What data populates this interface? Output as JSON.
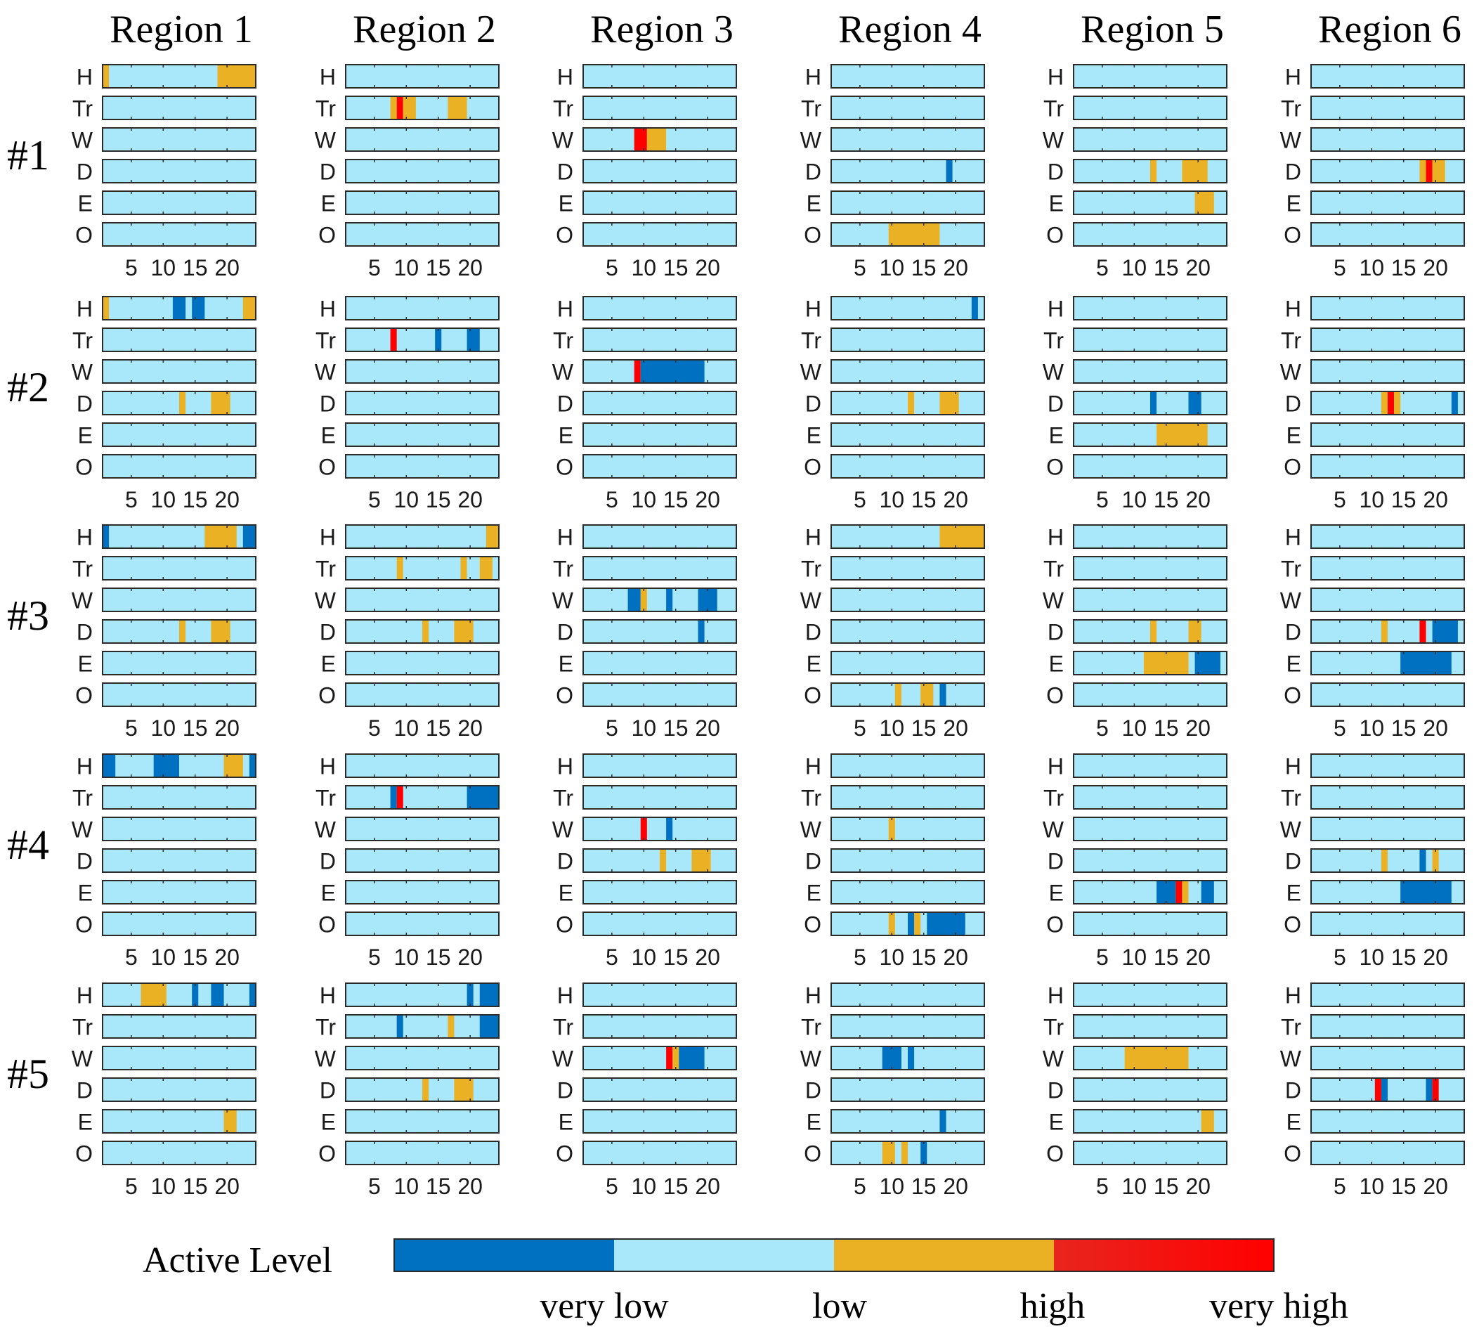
{
  "chart_data": {
    "type": "heatmap",
    "regions": [
      "Region 1",
      "Region 2",
      "Region 3",
      "Region 4",
      "Region 5",
      "Region 6"
    ],
    "groups": [
      "#1",
      "#2",
      "#3",
      "#4",
      "#5"
    ],
    "rows": [
      "H",
      "Tr",
      "W",
      "D",
      "E",
      "O"
    ],
    "x_range": [
      1,
      24
    ],
    "x_ticks": [
      5,
      10,
      15,
      20
    ],
    "x_tick_labels": [
      "5",
      "10",
      "15",
      "20"
    ],
    "default_level": 1,
    "levels": [
      {
        "name": "very low",
        "color": "#0070C0"
      },
      {
        "name": "low",
        "color": "#A8E8FA"
      },
      {
        "name": "high",
        "color": "#EAB125"
      },
      {
        "name": "very high",
        "color": "#FF0000"
      }
    ],
    "legend": {
      "title": "Active Level",
      "labels": [
        "very low",
        "low",
        "high",
        "very high"
      ],
      "colors": [
        "#0070C0",
        "#A8E8FA",
        "#EAB125",
        "#FF0000"
      ]
    },
    "segments": [
      [
        {
          "H": [
            [
              1,
              1,
              2
            ],
            [
              19,
              24,
              2
            ]
          ],
          "Tr": [],
          "W": [],
          "D": [],
          "E": [],
          "O": []
        },
        {
          "H": [],
          "Tr": [
            [
              8,
              8,
              2
            ],
            [
              9,
              9,
              3
            ],
            [
              10,
              11,
              2
            ],
            [
              17,
              19,
              2
            ]
          ],
          "W": [],
          "D": [],
          "E": [],
          "O": []
        },
        {
          "H": [],
          "Tr": [],
          "W": [
            [
              9,
              10,
              3
            ],
            [
              11,
              13,
              2
            ]
          ],
          "D": [],
          "E": [],
          "O": []
        },
        {
          "H": [],
          "Tr": [],
          "W": [],
          "D": [
            [
              19,
              19,
              0
            ]
          ],
          "E": [],
          "O": [
            [
              10,
              17,
              2
            ]
          ]
        },
        {
          "H": [],
          "Tr": [],
          "W": [],
          "D": [
            [
              13,
              13,
              2
            ],
            [
              18,
              21,
              2
            ]
          ],
          "E": [
            [
              20,
              22,
              2
            ]
          ],
          "O": []
        },
        {
          "H": [],
          "Tr": [],
          "W": [],
          "D": [
            [
              18,
              18,
              2
            ],
            [
              19,
              19,
              3
            ],
            [
              20,
              21,
              2
            ]
          ],
          "E": [],
          "O": []
        }
      ],
      [
        {
          "H": [
            [
              1,
              1,
              2
            ],
            [
              12,
              13,
              0
            ],
            [
              15,
              16,
              0
            ],
            [
              23,
              24,
              2
            ]
          ],
          "Tr": [],
          "W": [],
          "D": [
            [
              13,
              13,
              2
            ],
            [
              18,
              20,
              2
            ]
          ],
          "E": [],
          "O": []
        },
        {
          "H": [],
          "Tr": [
            [
              8,
              8,
              3
            ],
            [
              15,
              15,
              0
            ],
            [
              20,
              21,
              0
            ]
          ],
          "W": [],
          "D": [],
          "E": [],
          "O": []
        },
        {
          "H": [],
          "Tr": [],
          "W": [
            [
              9,
              9,
              3
            ],
            [
              10,
              19,
              0
            ]
          ],
          "D": [],
          "E": [],
          "O": []
        },
        {
          "H": [
            [
              23,
              23,
              0
            ]
          ],
          "Tr": [],
          "W": [],
          "D": [
            [
              13,
              13,
              2
            ],
            [
              18,
              20,
              2
            ]
          ],
          "E": [],
          "O": []
        },
        {
          "H": [],
          "Tr": [],
          "W": [],
          "D": [
            [
              13,
              13,
              0
            ],
            [
              19,
              20,
              0
            ]
          ],
          "E": [
            [
              14,
              21,
              2
            ]
          ],
          "O": []
        },
        {
          "H": [],
          "Tr": [],
          "W": [],
          "D": [
            [
              12,
              12,
              2
            ],
            [
              13,
              13,
              3
            ],
            [
              14,
              14,
              2
            ],
            [
              23,
              23,
              0
            ]
          ],
          "E": [],
          "O": []
        }
      ],
      [
        {
          "H": [
            [
              1,
              1,
              0
            ],
            [
              17,
              21,
              2
            ],
            [
              23,
              24,
              0
            ]
          ],
          "Tr": [],
          "W": [],
          "D": [
            [
              13,
              13,
              2
            ],
            [
              18,
              20,
              2
            ]
          ],
          "E": [],
          "O": []
        },
        {
          "H": [
            [
              23,
              24,
              2
            ]
          ],
          "Tr": [
            [
              9,
              9,
              2
            ],
            [
              19,
              19,
              2
            ],
            [
              22,
              23,
              2
            ]
          ],
          "W": [],
          "D": [
            [
              13,
              13,
              2
            ],
            [
              18,
              20,
              2
            ]
          ],
          "E": [],
          "O": []
        },
        {
          "H": [],
          "Tr": [],
          "W": [
            [
              8,
              9,
              0
            ],
            [
              10,
              10,
              2
            ],
            [
              14,
              14,
              0
            ],
            [
              19,
              21,
              0
            ]
          ],
          "D": [
            [
              19,
              19,
              0
            ]
          ],
          "E": [],
          "O": []
        },
        {
          "H": [
            [
              18,
              24,
              2
            ]
          ],
          "Tr": [],
          "W": [],
          "D": [],
          "E": [],
          "O": [
            [
              11,
              11,
              2
            ],
            [
              15,
              16,
              2
            ],
            [
              18,
              18,
              0
            ]
          ]
        },
        {
          "H": [],
          "Tr": [],
          "W": [],
          "D": [
            [
              13,
              13,
              2
            ],
            [
              19,
              20,
              2
            ]
          ],
          "E": [
            [
              12,
              18,
              2
            ],
            [
              20,
              23,
              0
            ]
          ],
          "O": []
        },
        {
          "H": [],
          "Tr": [],
          "W": [],
          "D": [
            [
              12,
              12,
              2
            ],
            [
              18,
              18,
              3
            ],
            [
              20,
              23,
              0
            ]
          ],
          "E": [
            [
              15,
              22,
              0
            ]
          ],
          "O": []
        }
      ],
      [
        {
          "H": [
            [
              1,
              2,
              0
            ],
            [
              9,
              12,
              0
            ],
            [
              20,
              22,
              2
            ],
            [
              24,
              24,
              0
            ]
          ],
          "Tr": [],
          "W": [],
          "D": [],
          "E": [],
          "O": []
        },
        {
          "H": [],
          "Tr": [
            [
              8,
              8,
              0
            ],
            [
              9,
              9,
              3
            ],
            [
              20,
              24,
              0
            ]
          ],
          "W": [],
          "D": [],
          "E": [],
          "O": []
        },
        {
          "H": [],
          "Tr": [],
          "W": [
            [
              10,
              10,
              3
            ],
            [
              14,
              14,
              0
            ]
          ],
          "D": [
            [
              13,
              13,
              2
            ],
            [
              18,
              20,
              2
            ]
          ],
          "E": [],
          "O": []
        },
        {
          "H": [],
          "Tr": [],
          "W": [
            [
              10,
              10,
              2
            ]
          ],
          "D": [],
          "E": [],
          "O": [
            [
              10,
              10,
              2
            ],
            [
              13,
              13,
              0
            ],
            [
              14,
              14,
              2
            ],
            [
              16,
              21,
              0
            ]
          ]
        },
        {
          "H": [],
          "Tr": [],
          "W": [],
          "D": [],
          "E": [
            [
              14,
              16,
              0
            ],
            [
              17,
              17,
              3
            ],
            [
              18,
              18,
              2
            ],
            [
              21,
              22,
              0
            ]
          ],
          "O": []
        },
        {
          "H": [],
          "Tr": [],
          "W": [],
          "D": [
            [
              12,
              12,
              2
            ],
            [
              18,
              18,
              0
            ],
            [
              20,
              20,
              2
            ]
          ],
          "E": [
            [
              15,
              22,
              0
            ]
          ],
          "O": []
        }
      ],
      [
        {
          "H": [
            [
              7,
              10,
              2
            ],
            [
              15,
              15,
              0
            ],
            [
              18,
              19,
              0
            ],
            [
              24,
              24,
              0
            ]
          ],
          "Tr": [],
          "W": [],
          "D": [],
          "E": [
            [
              20,
              21,
              2
            ]
          ],
          "O": []
        },
        {
          "H": [
            [
              20,
              20,
              0
            ],
            [
              22,
              24,
              0
            ]
          ],
          "Tr": [
            [
              9,
              9,
              0
            ],
            [
              17,
              17,
              2
            ],
            [
              22,
              24,
              0
            ]
          ],
          "W": [],
          "D": [
            [
              13,
              13,
              2
            ],
            [
              18,
              20,
              2
            ]
          ],
          "E": [],
          "O": []
        },
        {
          "H": [],
          "Tr": [],
          "W": [
            [
              14,
              14,
              3
            ],
            [
              15,
              15,
              2
            ],
            [
              16,
              19,
              0
            ]
          ],
          "D": [],
          "E": [],
          "O": []
        },
        {
          "H": [],
          "Tr": [],
          "W": [
            [
              9,
              11,
              0
            ],
            [
              13,
              13,
              0
            ]
          ],
          "D": [],
          "E": [
            [
              18,
              18,
              0
            ]
          ],
          "O": [
            [
              9,
              10,
              2
            ],
            [
              12,
              12,
              2
            ],
            [
              15,
              15,
              0
            ]
          ]
        },
        {
          "H": [],
          "Tr": [],
          "W": [
            [
              9,
              18,
              2
            ]
          ],
          "D": [],
          "E": [
            [
              21,
              22,
              2
            ]
          ],
          "O": []
        },
        {
          "H": [],
          "Tr": [],
          "W": [],
          "D": [
            [
              11,
              11,
              3
            ],
            [
              12,
              12,
              0
            ],
            [
              19,
              19,
              0
            ],
            [
              20,
              20,
              3
            ]
          ],
          "E": [],
          "O": []
        }
      ]
    ]
  }
}
